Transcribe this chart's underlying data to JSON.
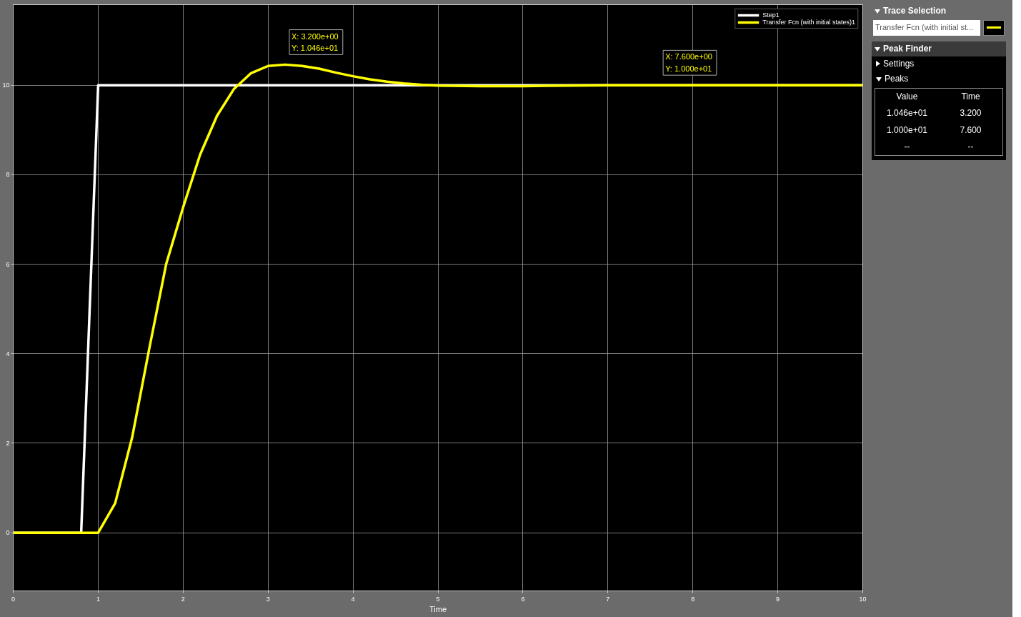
{
  "chart_data": {
    "type": "line",
    "xlabel": "Time",
    "xlim": [
      0,
      10
    ],
    "ylim": [
      -1.3,
      11.8
    ],
    "xticks": [
      0,
      1,
      2,
      3,
      4,
      5,
      6,
      7,
      8,
      9,
      10
    ],
    "yticks": [
      0,
      2,
      4,
      6,
      8,
      10
    ],
    "grid": true,
    "legend": "top right",
    "line_style": "solid",
    "series": [
      {
        "name": "Step1",
        "color": "#ffffff",
        "x": [
          0,
          0.8,
          1,
          10
        ],
        "values": [
          0,
          0,
          10,
          10
        ]
      },
      {
        "name": "Transfer Fcn (with initial states)1",
        "color": "#ffff00",
        "x": [
          0,
          1,
          1.2,
          1.4,
          1.6,
          1.8,
          2.0,
          2.2,
          2.4,
          2.6,
          2.8,
          3.0,
          3.2,
          3.4,
          3.6,
          3.8,
          4.0,
          4.2,
          4.4,
          4.6,
          4.8,
          5.0,
          5.5,
          6.0,
          7.0,
          10.0
        ],
        "values": [
          0,
          0,
          0.66,
          2.13,
          4.1,
          6.0,
          7.27,
          8.45,
          9.32,
          9.92,
          10.27,
          10.43,
          10.46,
          10.43,
          10.37,
          10.28,
          10.2,
          10.13,
          10.08,
          10.04,
          10.01,
          9.99,
          9.98,
          9.98,
          10.0,
          10.0
        ]
      }
    ],
    "annotations": [
      {
        "text": "X:  3.200e+00\nY:  1.046e+01",
        "x": 3.2,
        "y": 10.46
      },
      {
        "text": "X:  7.600e+00\nY:  1.000e+01",
        "x": 7.6,
        "y": 10.0
      },
      "Trace Selection",
      "Transfer Fcn (with initial st...",
      "Peak Finder",
      "Settings",
      "Peaks",
      "Value",
      "Time",
      "1.046e+01",
      "3.200",
      "1.000e+01",
      "7.600",
      "--",
      "--"
    ]
  }
}
